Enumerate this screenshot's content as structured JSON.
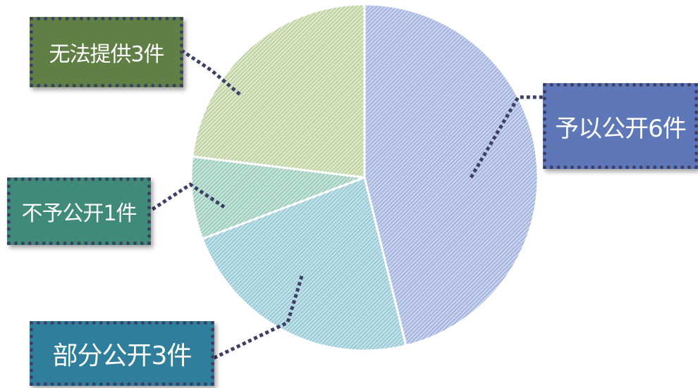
{
  "chart_data": {
    "type": "pie",
    "slices": [
      {
        "label": "予以公开6件",
        "value": 6,
        "color": "#5d77b8",
        "fill": "#c6d1ee"
      },
      {
        "label": "部分公开3件",
        "value": 3,
        "color": "#2f7f9c",
        "fill": "#bfe0e7"
      },
      {
        "label": "不予公开1件",
        "value": 1,
        "color": "#3f8a78",
        "fill": "#c2e3d6"
      },
      {
        "label": "无法提供3件",
        "value": 3,
        "color": "#5f7f44",
        "fill": "#dbe7c6"
      }
    ],
    "start_angle": "12 o'clock",
    "direction": "clockwise",
    "legend": "none"
  }
}
